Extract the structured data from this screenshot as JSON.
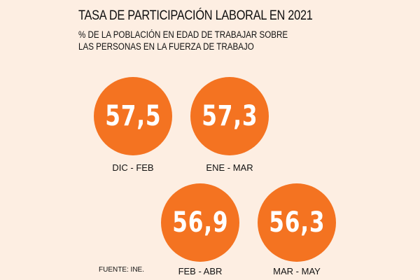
{
  "chart_data": {
    "type": "bubble-values",
    "title": "TASA DE PARTICIPACIÓN LABORAL EN 2021",
    "subtitle_lines": [
      "% DE LA POBLACIÓN EN EDAD DE TRABAJAR SOBRE",
      "LAS PERSONAS EN LA FUERZA DE TRABAJO"
    ],
    "categories": [
      "DIC - FEB",
      "ENE - MAR",
      "FEB - ABR",
      "MAR - MAY"
    ],
    "values": [
      57.5,
      57.3,
      56.9,
      56.3
    ],
    "value_labels": [
      "57,5",
      "57,3",
      "56,9",
      "56,3"
    ],
    "source": "FUENTE: INE.",
    "colors": {
      "circle": "#f47321",
      "background": "#fdeee2",
      "text": "#111111",
      "value_text": "#ffffff"
    }
  }
}
